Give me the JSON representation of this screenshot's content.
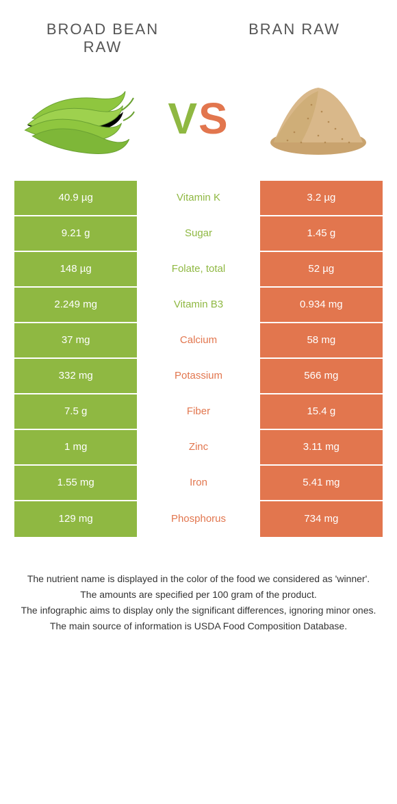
{
  "colors": {
    "green": "#8fb842",
    "orange": "#e2764e",
    "bean_green": "#8fc63f",
    "bean_dark": "#6aa132",
    "bran_light": "#d9b88a",
    "bran_mid": "#c9a36e",
    "bran_dark": "#b38a52"
  },
  "header": {
    "left_title": "BROAD BEAN\nRAW",
    "right_title": "BRAN RAW"
  },
  "vs": {
    "v": "V",
    "s": "S"
  },
  "rows": [
    {
      "left": "40.9 µg",
      "label": "Vitamin K",
      "right": "3.2 µg",
      "winner": "left"
    },
    {
      "left": "9.21 g",
      "label": "Sugar",
      "right": "1.45 g",
      "winner": "left"
    },
    {
      "left": "148 µg",
      "label": "Folate, total",
      "right": "52 µg",
      "winner": "left"
    },
    {
      "left": "2.249 mg",
      "label": "Vitamin B3",
      "right": "0.934 mg",
      "winner": "left"
    },
    {
      "left": "37 mg",
      "label": "Calcium",
      "right": "58 mg",
      "winner": "right"
    },
    {
      "left": "332 mg",
      "label": "Potassium",
      "right": "566 mg",
      "winner": "right"
    },
    {
      "left": "7.5 g",
      "label": "Fiber",
      "right": "15.4 g",
      "winner": "right"
    },
    {
      "left": "1 mg",
      "label": "Zinc",
      "right": "3.11 mg",
      "winner": "right"
    },
    {
      "left": "1.55 mg",
      "label": "Iron",
      "right": "5.41 mg",
      "winner": "right"
    },
    {
      "left": "129 mg",
      "label": "Phosphorus",
      "right": "734 mg",
      "winner": "right"
    }
  ],
  "footer": {
    "line1": "The nutrient name is displayed in the color of the food we considered as 'winner'.",
    "line2": "The amounts are specified per 100 gram of the product.",
    "line3": "The infographic aims to display only the significant differences, ignoring minor ones.",
    "line4": "The main source of information is USDA Food Composition Database."
  }
}
